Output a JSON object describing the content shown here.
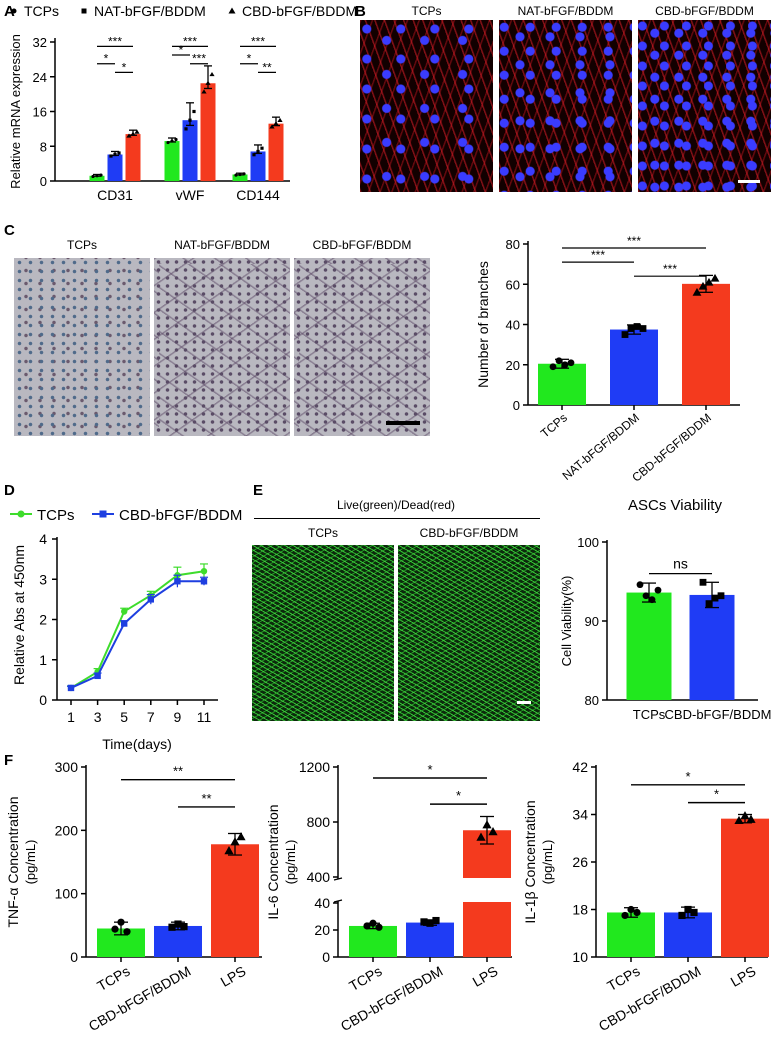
{
  "panels": {
    "A": "A",
    "B": "B",
    "C": "C",
    "D": "D",
    "E": "E",
    "F": "F"
  },
  "colors": {
    "tcps": "#21e81e",
    "nat": "#1f3cf5",
    "cbd": "#f43a1e",
    "lineTcps": "#3edc2c",
    "lineCbd": "#1e3fe0"
  },
  "panelB": {
    "labels": [
      "TCPs",
      "NAT-bFGF/BDDM",
      "CBD-bFGF/BDDM"
    ]
  },
  "panelC": {
    "labels": [
      "TCPs",
      "NAT-bFGF/BDDM",
      "CBD-bFGF/BDDM"
    ]
  },
  "panelE": {
    "header": "Live(green)/Dead(red)",
    "labels": [
      "TCPs",
      "CBD-bFGF/BDDM"
    ]
  },
  "chart_data": [
    {
      "id": "A",
      "type": "bar",
      "legend": [
        "TCPs",
        "NAT-bFGF/BDDM",
        "CBD-bFGF/BDDM"
      ],
      "categories": [
        "CD31",
        "vWF",
        "CD144"
      ],
      "series": [
        {
          "name": "TCPs",
          "values": [
            1.2,
            9.2,
            1.5
          ],
          "errors": [
            0.3,
            0.7,
            0.3
          ]
        },
        {
          "name": "NAT-bFGF/BDDM",
          "values": [
            6.1,
            14.0,
            6.8
          ],
          "errors": [
            0.7,
            4.0,
            1.5
          ]
        },
        {
          "name": "CBD-bFGF/BDDM",
          "values": [
            10.8,
            22.5,
            13.2
          ],
          "errors": [
            0.9,
            4.0,
            1.5
          ]
        }
      ],
      "ylabel": "Relative mRNA expression",
      "ylim": [
        0,
        32
      ],
      "yticks": [
        0,
        8,
        16,
        24,
        32
      ],
      "sig": [
        {
          "group": 0,
          "from": 0,
          "to": 2,
          "level": 31,
          "text": "***"
        },
        {
          "group": 0,
          "from": 0,
          "to": 1,
          "level": 27,
          "text": "*"
        },
        {
          "group": 0,
          "from": 1,
          "to": 2,
          "level": 25,
          "text": "*"
        },
        {
          "group": 1,
          "from": 0,
          "to": 2,
          "level": 31,
          "text": "***"
        },
        {
          "group": 1,
          "from": 0,
          "to": 1,
          "level": 29,
          "text": "*"
        },
        {
          "group": 1,
          "from": 1,
          "to": 2,
          "level": 27,
          "text": "***"
        },
        {
          "group": 2,
          "from": 0,
          "to": 2,
          "level": 31,
          "text": "***"
        },
        {
          "group": 2,
          "from": 0,
          "to": 1,
          "level": 27,
          "text": "*"
        },
        {
          "group": 2,
          "from": 1,
          "to": 2,
          "level": 25,
          "text": "**"
        }
      ]
    },
    {
      "id": "C",
      "type": "bar",
      "categories": [
        "TCPs",
        "NAT-bFGF/BDDM",
        "CBD-bFGF/BDDM"
      ],
      "values": [
        20.5,
        37.5,
        60.2
      ],
      "errors": [
        2.2,
        2.3,
        4.2
      ],
      "points": [
        [
          19,
          22,
          20,
          21
        ],
        [
          35,
          38,
          39,
          38
        ],
        [
          56,
          59,
          61,
          63
        ]
      ],
      "ylabel": "Number of branches",
      "ylim": [
        0,
        80
      ],
      "yticks": [
        0,
        20,
        40,
        60,
        80
      ],
      "sig": [
        {
          "from": 0,
          "to": 2,
          "level": 78,
          "text": "***"
        },
        {
          "from": 0,
          "to": 1,
          "level": 71,
          "text": "***"
        },
        {
          "from": 1,
          "to": 2,
          "level": 64,
          "text": "***"
        }
      ]
    },
    {
      "id": "D",
      "type": "line",
      "x": [
        1,
        3,
        5,
        7,
        9,
        11
      ],
      "series": [
        {
          "name": "TCPs",
          "values": [
            0.3,
            0.7,
            2.2,
            2.6,
            3.1,
            3.2
          ],
          "errors": [
            0.05,
            0.08,
            0.08,
            0.1,
            0.2,
            0.18
          ]
        },
        {
          "name": "CBD-bFGF/BDDM",
          "values": [
            0.3,
            0.6,
            1.9,
            2.5,
            2.95,
            2.95
          ],
          "errors": [
            0.04,
            0.07,
            0.07,
            0.12,
            0.15,
            0.1
          ]
        }
      ],
      "xlabel": "Time(days)",
      "ylabel": "Relative Abs at 450nm",
      "ylim": [
        0,
        4
      ],
      "yticks": [
        0,
        1,
        2,
        3,
        4
      ],
      "xticks": [
        1,
        3,
        5,
        7,
        9,
        11
      ]
    },
    {
      "id": "E",
      "type": "bar",
      "title": "ASCs Viability",
      "categories": [
        "TCPs",
        "CBD-bFGF/BDDM"
      ],
      "values": [
        93.6,
        93.3
      ],
      "errors": [
        1.2,
        1.6
      ],
      "points": [
        [
          94.6,
          93.2,
          92.7,
          93.9
        ],
        [
          94.9,
          92.2,
          92.9,
          93.2
        ]
      ],
      "ylabel": "Cell Viability(%)",
      "ylim": [
        80,
        100
      ],
      "yticks": [
        80,
        90,
        100
      ],
      "sig": [
        {
          "from": 0,
          "to": 1,
          "level": 96,
          "text": "ns"
        }
      ]
    },
    {
      "id": "F1",
      "type": "bar",
      "categories": [
        "TCPs",
        "CBD-bFGF/BDDM",
        "LPS"
      ],
      "values": [
        45,
        49,
        178
      ],
      "errors": [
        10,
        6,
        17
      ],
      "points": [
        [
          44,
          55,
          40
        ],
        [
          47,
          52,
          48
        ],
        [
          168,
          182,
          190
        ]
      ],
      "ylabel": "TNF-α Concentration",
      "ylabel2": "(pg/mL)",
      "ylim": [
        0,
        300
      ],
      "yticks": [
        0,
        100,
        200,
        300
      ],
      "sig": [
        {
          "from": 0,
          "to": 2,
          "level": 280,
          "text": "**"
        },
        {
          "from": 1,
          "to": 2,
          "level": 237,
          "text": "**"
        }
      ]
    },
    {
      "id": "F2",
      "type": "bar",
      "broken_axis": true,
      "categories": [
        "TCPs",
        "CBD-bFGF/BDDM",
        "LPS"
      ],
      "values": [
        23,
        25.5,
        740
      ],
      "errors": [
        2,
        2,
        100
      ],
      "points": [
        [
          23,
          25,
          22
        ],
        [
          26,
          25,
          27
        ],
        [
          690,
          780,
          730
        ]
      ],
      "ylabel": "IL-6 Concentration",
      "ylabel2": "(pg/mL)",
      "lower": {
        "ylim": [
          0,
          40
        ],
        "yticks": [
          0,
          20,
          40
        ]
      },
      "upper": {
        "ylim": [
          400,
          1200
        ],
        "yticks": [
          400,
          800,
          1200
        ]
      },
      "sig": [
        {
          "from": 0,
          "to": 2,
          "level": 1120,
          "text": "*"
        },
        {
          "from": 1,
          "to": 2,
          "level": 930,
          "text": "*"
        }
      ]
    },
    {
      "id": "F3",
      "type": "bar",
      "categories": [
        "TCPs",
        "CBD-bFGF/BDDM",
        "LPS"
      ],
      "values": [
        17.5,
        17.5,
        33.3
      ],
      "errors": [
        0.8,
        0.9,
        0.7
      ],
      "points": [
        [
          17.0,
          18.0,
          17.5
        ],
        [
          17.0,
          18.0,
          17.5
        ],
        [
          33.0,
          33.8,
          33.2
        ]
      ],
      "ylabel": "IL-1β Concentration",
      "ylabel2": "(pg/mL)",
      "ylim": [
        10,
        42
      ],
      "yticks": [
        10,
        18,
        26,
        34,
        42
      ],
      "sig": [
        {
          "from": 0,
          "to": 2,
          "level": 39,
          "text": "*"
        },
        {
          "from": 1,
          "to": 2,
          "level": 36,
          "text": "*"
        }
      ]
    }
  ]
}
